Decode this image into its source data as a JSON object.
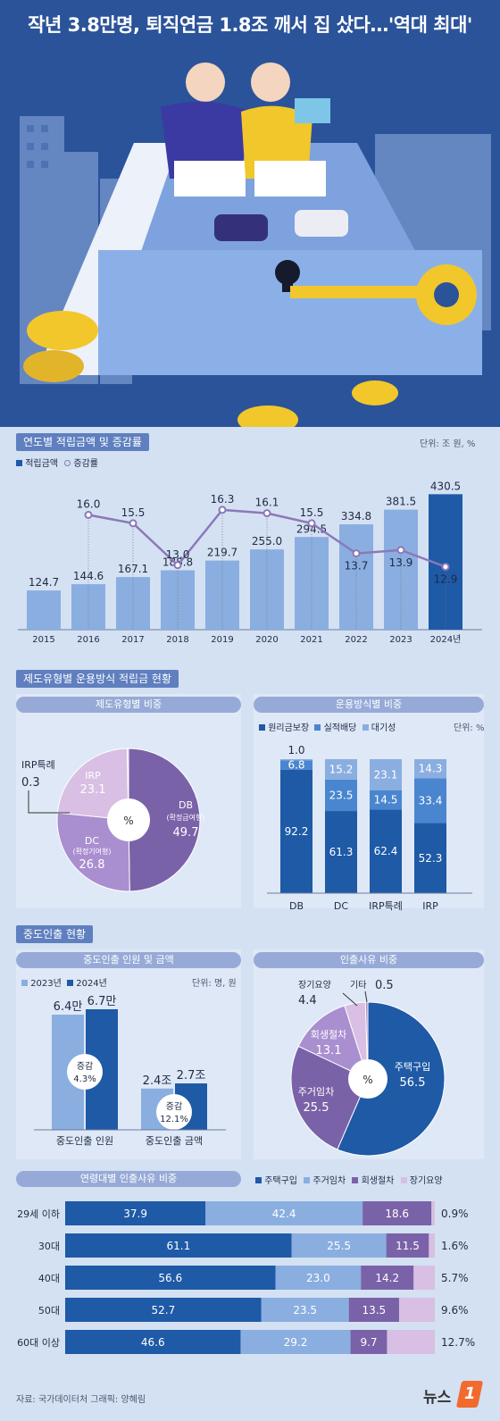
{
  "headline": "작년 3.8만명, 퇴직연금 1.8조 깨서 집 샀다…'역대 최대'",
  "colors": {
    "dark": "#1e5aa6",
    "mid": "#4a86cf",
    "light": "#8aaee0",
    "purple_dark": "#7a62a8",
    "purple_mid": "#a98fcf",
    "purple_light": "#d8bfe3",
    "line": "#8c78b8"
  },
  "section1": {
    "title": "연도별 적립금액 및 증감률",
    "unit": "단위: 조 원, %",
    "legend": {
      "bar": "적립금액",
      "line": "증감률"
    }
  },
  "section2": {
    "title": "제도유형별 운용방식 적립금 현황",
    "left_title": "제도유형별 비중",
    "right_title": "운용방식별 비중",
    "unit": "단위: %",
    "legend": [
      "원리금보장",
      "실적배당",
      "대기성"
    ],
    "pie_center": "%",
    "slice_labels": {
      "db": "DB",
      "db_sub": "(확정급여형)",
      "db_val": "49.7",
      "dc": "DC",
      "dc_sub": "(확정기여형)",
      "dc_val": "26.8",
      "irp": "IRP",
      "irp_val": "23.1",
      "irp_sp": "IRP특례",
      "irp_sp_val": "0.3"
    }
  },
  "section3": {
    "title": "중도인출 현황",
    "left_title": "중도인출 인원 및 금액",
    "right_title": "인출사유 비중",
    "unit": "단위: 명, 원",
    "legend": [
      "2023년",
      "2024년"
    ],
    "groups": [
      "중도인출 인원",
      "중도인출 금액"
    ],
    "v2023": [
      "6.4만",
      "2.4조"
    ],
    "v2024": [
      "6.7만",
      "2.7조"
    ],
    "change_label": "증감",
    "change": [
      "4.3%",
      "12.1%"
    ],
    "pie_center": "%",
    "reason_labels": {
      "house_buy": "주택구입",
      "house_buy_val": "56.5",
      "rent": "주거임차",
      "rent_val": "25.5",
      "rehab": "회생절차",
      "rehab_val": "13.1",
      "care": "장기요양",
      "care_val": "4.4",
      "etc": "기타",
      "etc_val": "0.5"
    }
  },
  "section4": {
    "title": "연령대별 인출사유 비중",
    "legend": [
      "주택구입",
      "주거임차",
      "회생절차",
      "장기요양"
    ]
  },
  "footer": {
    "source": "자료: 국가데이터처   그래픽: 양혜림",
    "logo": "뉴스",
    "logo_badge": "1"
  },
  "chart_data": [
    {
      "type": "bar",
      "title": "연도별 적립금액 및 증감률",
      "categories": [
        "2015",
        "2016",
        "2017",
        "2018",
        "2019",
        "2020",
        "2021",
        "2022",
        "2023",
        "2024년"
      ],
      "series": [
        {
          "name": "적립금액",
          "type": "bar",
          "values": [
            124.7,
            144.6,
            167.1,
            188.8,
            219.7,
            255.0,
            294.5,
            334.8,
            381.5,
            430.5
          ]
        },
        {
          "name": "증감률",
          "type": "line",
          "values": [
            null,
            16.0,
            15.5,
            13.0,
            16.3,
            16.1,
            15.5,
            13.7,
            13.9,
            12.9
          ]
        }
      ],
      "ylim": [
        0,
        440
      ]
    },
    {
      "type": "pie",
      "title": "제도유형별 비중",
      "categories": [
        "DB(확정급여형)",
        "DC(확정기여형)",
        "IRP",
        "IRP특례"
      ],
      "values": [
        49.7,
        26.8,
        23.1,
        0.3
      ]
    },
    {
      "type": "bar",
      "stacked": true,
      "title": "운용방식별 비중",
      "categories": [
        "DB",
        "DC",
        "IRP특례",
        "IRP"
      ],
      "series": [
        {
          "name": "원리금보장",
          "values": [
            92.2,
            61.3,
            62.4,
            52.3
          ]
        },
        {
          "name": "실적배당",
          "values": [
            6.8,
            23.5,
            14.5,
            33.4
          ]
        },
        {
          "name": "대기성",
          "values": [
            1.0,
            15.2,
            23.1,
            14.3
          ]
        }
      ]
    },
    {
      "type": "bar",
      "title": "중도인출 인원 및 금액",
      "categories": [
        "중도인출 인원",
        "중도인출 금액"
      ],
      "series": [
        {
          "name": "2023년",
          "values": [
            6.4,
            2.4
          ]
        },
        {
          "name": "2024년",
          "values": [
            6.7,
            2.7
          ]
        }
      ]
    },
    {
      "type": "pie",
      "title": "인출사유 비중",
      "categories": [
        "주택구입",
        "주거임차",
        "회생절차",
        "장기요양",
        "기타"
      ],
      "values": [
        56.5,
        25.5,
        13.1,
        4.4,
        0.5
      ]
    },
    {
      "type": "bar",
      "stacked": true,
      "orientation": "horizontal",
      "title": "연령대별 인출사유 비중",
      "categories": [
        "29세 이하",
        "30대",
        "40대",
        "50대",
        "60대 이상"
      ],
      "series": [
        {
          "name": "주택구입",
          "values": [
            37.9,
            61.1,
            56.6,
            52.7,
            46.6
          ]
        },
        {
          "name": "주거임차",
          "values": [
            42.4,
            25.5,
            23.0,
            23.5,
            29.2
          ]
        },
        {
          "name": "회생절차",
          "values": [
            18.6,
            11.5,
            14.2,
            13.5,
            9.7
          ]
        },
        {
          "name": "장기요양",
          "values": [
            0.9,
            1.6,
            5.7,
            9.6,
            12.7
          ]
        }
      ]
    }
  ]
}
